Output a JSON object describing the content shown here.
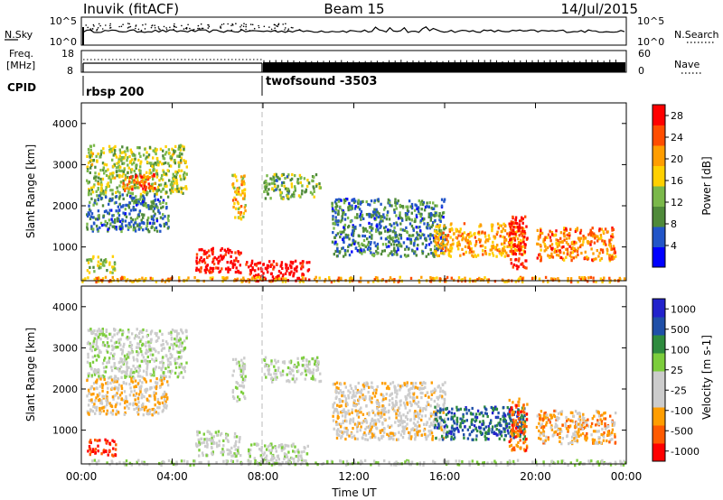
{
  "header": {
    "station": "Inuvik (fitACF)",
    "beam": "Beam 15",
    "date": "14/Jul/2015"
  },
  "top_panels": {
    "nsky_label": "N.Sky",
    "nsky_ticks": [
      "10^5",
      "10^0"
    ],
    "nsearch_label": "N.Search",
    "nsearch_ticks": [
      "10^5",
      "10^0"
    ],
    "freq_label": "Freq.",
    "freq_unit": "[MHz]",
    "freq_ticks": [
      "18",
      "8"
    ],
    "nave_label": "Nave",
    "nave_ticks": [
      "60",
      "0"
    ],
    "cpid_label": "CPID",
    "cpid_segments": [
      {
        "name": "rbsp 200",
        "start_hour": 0
      },
      {
        "name": "twofsound -3503",
        "start_hour": 7.9
      }
    ]
  },
  "x_axis": {
    "label": "Time UT",
    "ticks": [
      "00:00",
      "04:00",
      "08:00",
      "12:00",
      "16:00",
      "20:00",
      "00:00"
    ],
    "tick_hours": [
      0,
      4,
      8,
      12,
      16,
      20,
      24
    ]
  },
  "chart_data": [
    {
      "type": "heatmap",
      "title": "Power",
      "xlabel": "Time UT",
      "ylabel": "Slant Range [km]",
      "xlim": [
        0,
        24
      ],
      "ylim": [
        180,
        4500
      ],
      "yticks": [
        1000,
        2000,
        3000,
        4000
      ],
      "colorbar": {
        "label": "Power [dB]",
        "ticks": [
          "28",
          "24",
          "20",
          "16",
          "12",
          "8",
          "4"
        ],
        "tick_values": [
          28,
          24,
          20,
          16,
          12,
          8,
          4
        ],
        "range": [
          0,
          30
        ],
        "colors": [
          "#0000ff",
          "#2255c8",
          "#4f8a3a",
          "#7ab84a",
          "#ffd000",
          "#ff9d00",
          "#ff4d00",
          "#ff0000"
        ]
      },
      "regions": [
        {
          "t": [
            0.2,
            4.6
          ],
          "r": [
            2300,
            3500
          ],
          "power": 14
        },
        {
          "t": [
            1.8,
            3.2
          ],
          "r": [
            2400,
            2800
          ],
          "power": 24
        },
        {
          "t": [
            0.2,
            3.8
          ],
          "r": [
            1400,
            2300
          ],
          "power": 8
        },
        {
          "t": [
            0.2,
            1.5
          ],
          "r": [
            400,
            800
          ],
          "power": 14
        },
        {
          "t": [
            5.0,
            7.0
          ],
          "r": [
            400,
            1000
          ],
          "power": 28
        },
        {
          "t": [
            6.6,
            7.2
          ],
          "r": [
            1700,
            2800
          ],
          "power": 18
        },
        {
          "t": [
            7.2,
            10.0
          ],
          "r": [
            200,
            700
          ],
          "power": 30
        },
        {
          "t": [
            8.0,
            10.5
          ],
          "r": [
            2200,
            2800
          ],
          "power": 12
        },
        {
          "t": [
            11.0,
            16.0
          ],
          "r": [
            800,
            2200
          ],
          "power": 8
        },
        {
          "t": [
            15.5,
            19.5
          ],
          "r": [
            800,
            1600
          ],
          "power": 20
        },
        {
          "t": [
            18.8,
            19.6
          ],
          "r": [
            500,
            1800
          ],
          "power": 28
        },
        {
          "t": [
            20.0,
            23.5
          ],
          "r": [
            700,
            1500
          ],
          "power": 22
        },
        {
          "t": [
            0.0,
            24.0
          ],
          "r": [
            180,
            300
          ],
          "power": 20
        }
      ]
    },
    {
      "type": "heatmap",
      "title": "Velocity",
      "xlabel": "Time UT",
      "ylabel": "Slant Range [km]",
      "xlim": [
        0,
        24
      ],
      "ylim": [
        180,
        4500
      ],
      "yticks": [
        1000,
        2000,
        3000,
        4000
      ],
      "colorbar": {
        "label": "Velocity [m s-1]",
        "ticks": [
          "1000",
          "500",
          "100",
          "25",
          "-25",
          "-100",
          "-500",
          "-1000"
        ],
        "tick_values": [
          1000,
          500,
          100,
          25,
          -25,
          -100,
          -500,
          -1000
        ],
        "range": [
          -1000,
          1000
        ],
        "colors": [
          "#ff0000",
          "#ff5a00",
          "#ff9d00",
          "#cccccc",
          "#cccccc",
          "#7ccd3c",
          "#2e8b3e",
          "#1f4fa8",
          "#2222cc"
        ]
      },
      "regions": [
        {
          "t": [
            0.2,
            4.6
          ],
          "r": [
            2300,
            3500
          ],
          "velocity": 0
        },
        {
          "t": [
            0.2,
            3.8
          ],
          "r": [
            1400,
            2300
          ],
          "velocity": -300
        },
        {
          "t": [
            0.2,
            1.5
          ],
          "r": [
            400,
            800
          ],
          "velocity": -800
        },
        {
          "t": [
            5.0,
            7.0
          ],
          "r": [
            400,
            1000
          ],
          "velocity": 0
        },
        {
          "t": [
            6.6,
            7.2
          ],
          "r": [
            1700,
            2800
          ],
          "velocity": 0
        },
        {
          "t": [
            7.2,
            10.0
          ],
          "r": [
            200,
            700
          ],
          "velocity": 0
        },
        {
          "t": [
            8.0,
            10.5
          ],
          "r": [
            2200,
            2800
          ],
          "velocity": 0
        },
        {
          "t": [
            11.0,
            16.0
          ],
          "r": [
            800,
            2200
          ],
          "velocity": -200
        },
        {
          "t": [
            15.5,
            19.5
          ],
          "r": [
            800,
            1600
          ],
          "velocity": 600
        },
        {
          "t": [
            18.8,
            19.6
          ],
          "r": [
            500,
            1800
          ],
          "velocity": -600
        },
        {
          "t": [
            20.0,
            23.5
          ],
          "r": [
            700,
            1500
          ],
          "velocity": -400
        },
        {
          "t": [
            0.0,
            24.0
          ],
          "r": [
            180,
            300
          ],
          "velocity": 50
        }
      ]
    }
  ]
}
